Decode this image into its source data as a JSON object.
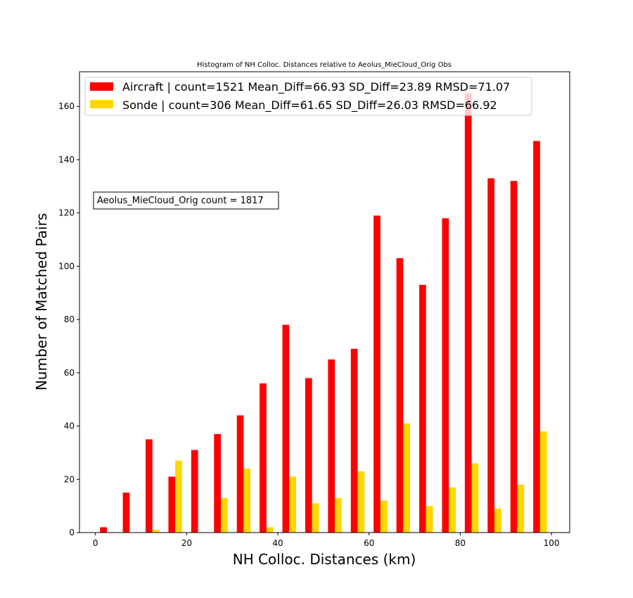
{
  "chart_data": {
    "type": "bar",
    "title": "Histogram of NH Colloc. Distances relative to Aeolus_MieCloud_Orig Obs",
    "xlabel": "NH Colloc. Distances (km)",
    "ylabel": "Number of Matched Pairs",
    "xlim": [
      -3.5,
      104
    ],
    "ylim": [
      0,
      173
    ],
    "xticks": [
      0,
      20,
      40,
      60,
      80,
      100
    ],
    "yticks": [
      0,
      20,
      40,
      60,
      80,
      100,
      120,
      140,
      160
    ],
    "bin_width": 5,
    "bin_starts": [
      0,
      5,
      10,
      15,
      20,
      25,
      30,
      35,
      40,
      45,
      50,
      55,
      60,
      65,
      70,
      75,
      80,
      85,
      90,
      95
    ],
    "series": [
      {
        "name": "Aircraft | count=1521 Mean_Diff=66.93 SD_Diff=23.89 RMSD=71.07",
        "color": "#ff0000",
        "values": [
          2,
          15,
          35,
          21,
          31,
          37,
          44,
          56,
          78,
          58,
          65,
          69,
          119,
          103,
          93,
          118,
          165,
          133,
          132,
          147
        ]
      },
      {
        "name": "Sonde | count=306 Mean_Diff=61.65 SD_Diff=26.03 RMSD=66.92",
        "color": "#ffd700",
        "values": [
          0,
          0,
          1,
          27,
          0,
          13,
          24,
          2,
          21,
          11,
          13,
          23,
          12,
          41,
          10,
          17,
          26,
          9,
          18,
          38
        ]
      }
    ],
    "legend_position": "top-left",
    "annotation": "Aeolus_MieCloud_Orig count = 1817",
    "grid": false
  }
}
